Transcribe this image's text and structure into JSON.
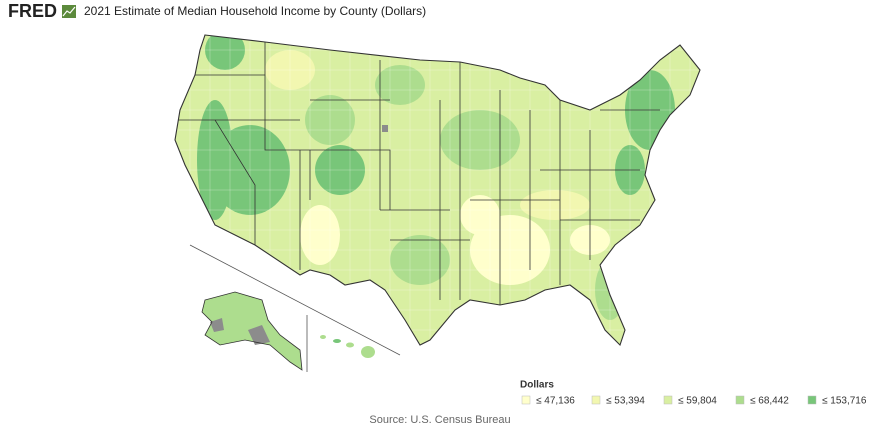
{
  "header": {
    "logo": "FRED",
    "title": "2021 Estimate of Median Household Income by County (Dollars)"
  },
  "legend": {
    "title": "Dollars",
    "items": [
      {
        "label": "≤ 47,136",
        "color": "#ffffcc"
      },
      {
        "label": "≤ 53,394",
        "color": "#f2f7b0"
      },
      {
        "label": "≤ 59,804",
        "color": "#d9efa2"
      },
      {
        "label": "≤ 68,442",
        "color": "#addd8e"
      },
      {
        "label": "≤ 153,716",
        "color": "#78c679"
      }
    ]
  },
  "source": "Source: U.S. Census Bureau"
}
